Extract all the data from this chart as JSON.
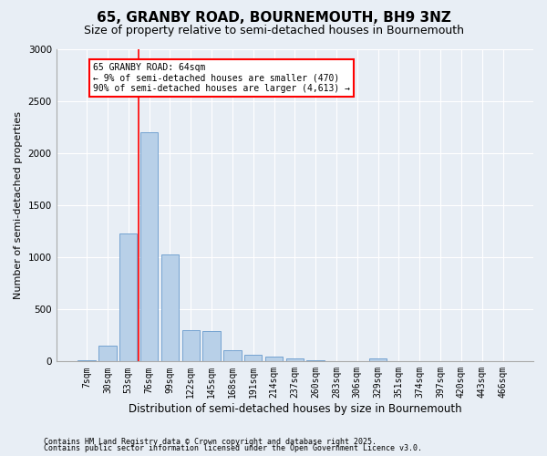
{
  "title": "65, GRANBY ROAD, BOURNEMOUTH, BH9 3NZ",
  "subtitle": "Size of property relative to semi-detached houses in Bournemouth",
  "xlabel": "Distribution of semi-detached houses by size in Bournemouth",
  "ylabel": "Number of semi-detached properties",
  "categories": [
    "7sqm",
    "30sqm",
    "53sqm",
    "76sqm",
    "99sqm",
    "122sqm",
    "145sqm",
    "168sqm",
    "191sqm",
    "214sqm",
    "237sqm",
    "260sqm",
    "283sqm",
    "306sqm",
    "329sqm",
    "351sqm",
    "374sqm",
    "397sqm",
    "420sqm",
    "443sqm",
    "466sqm"
  ],
  "values": [
    10,
    150,
    1230,
    2200,
    1030,
    305,
    295,
    110,
    60,
    50,
    25,
    10,
    0,
    0,
    25,
    0,
    0,
    0,
    0,
    0,
    0
  ],
  "bar_color": "#b8d0e8",
  "bar_edge_color": "#6699cc",
  "vline_position": 2.5,
  "vline_color": "red",
  "annotation_title": "65 GRANBY ROAD: 64sqm",
  "annotation_line1": "← 9% of semi-detached houses are smaller (470)",
  "annotation_line2": "90% of semi-detached houses are larger (4,613) →",
  "annotation_box_color": "white",
  "annotation_box_edge": "red",
  "ylim": [
    0,
    3000
  ],
  "yticks": [
    0,
    500,
    1000,
    1500,
    2000,
    2500,
    3000
  ],
  "bg_color": "#e8eef5",
  "plot_bg_color": "#e8eef5",
  "footer1": "Contains HM Land Registry data © Crown copyright and database right 2025.",
  "footer2": "Contains public sector information licensed under the Open Government Licence v3.0.",
  "title_fontsize": 11,
  "subtitle_fontsize": 9,
  "annotation_fontsize": 7,
  "tick_fontsize": 7,
  "ylabel_fontsize": 8,
  "xlabel_fontsize": 8.5,
  "footer_fontsize": 6
}
